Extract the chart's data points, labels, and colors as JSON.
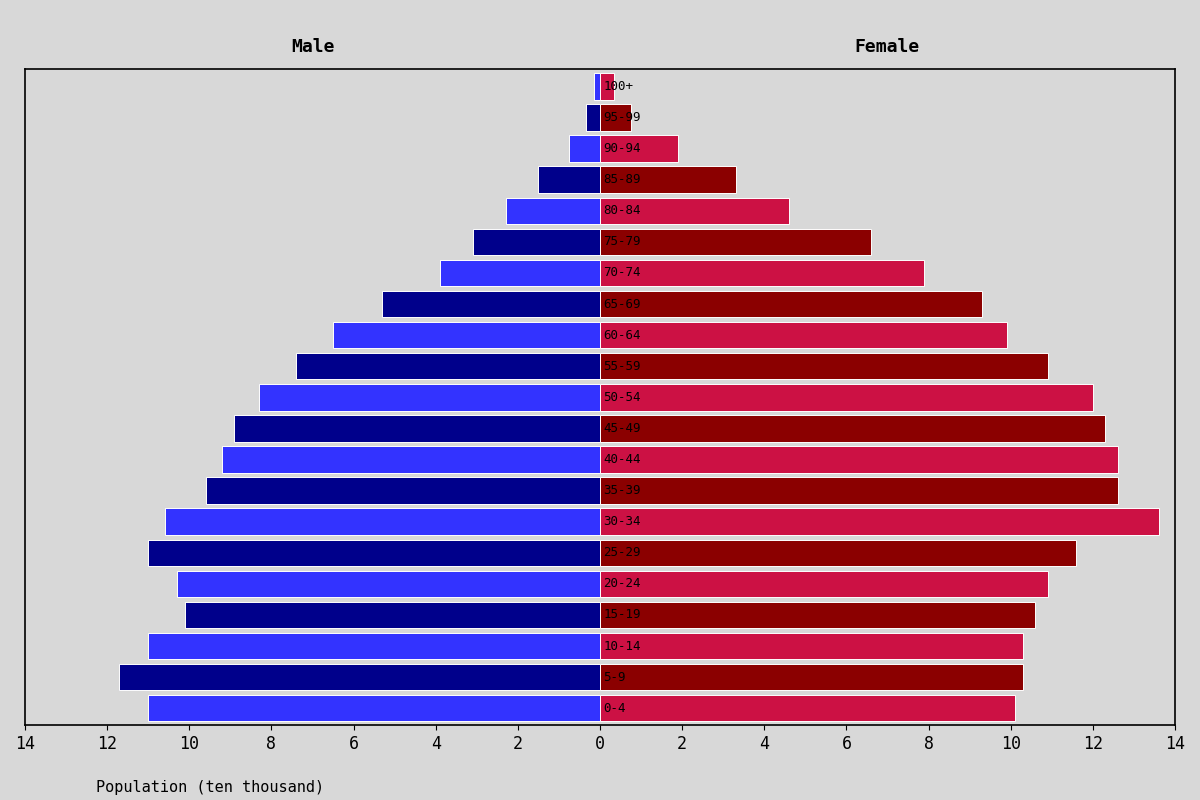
{
  "age_groups": [
    "0-4",
    "5-9",
    "10-14",
    "15-19",
    "20-24",
    "25-29",
    "30-34",
    "35-39",
    "40-44",
    "45-49",
    "50-54",
    "55-59",
    "60-64",
    "65-69",
    "70-74",
    "75-79",
    "80-84",
    "85-89",
    "90-94",
    "95-99",
    "100+"
  ],
  "male_values": [
    11.0,
    11.7,
    11.0,
    10.1,
    10.3,
    11.0,
    10.6,
    9.6,
    9.2,
    8.9,
    8.3,
    7.4,
    6.5,
    5.3,
    3.9,
    3.1,
    2.3,
    1.5,
    0.75,
    0.35,
    0.15
  ],
  "female_values": [
    10.1,
    10.3,
    10.3,
    10.6,
    10.9,
    11.6,
    13.6,
    12.6,
    12.6,
    12.3,
    12.0,
    10.9,
    9.9,
    9.3,
    7.9,
    6.6,
    4.6,
    3.3,
    1.9,
    0.75,
    0.35
  ],
  "male_dark": "#00008B",
  "male_light": "#3333FF",
  "female_dark": "#8B0000",
  "female_light": "#CC1144",
  "male_label": "Male",
  "female_label": "Female",
  "xlabel": "Population (ten thousand)",
  "xlim": 14,
  "background_color": "#d8d8d8",
  "tick_fontsize": 12,
  "title_fontsize": 13,
  "label_fontsize": 11,
  "age_fontsize": 9,
  "bar_height": 0.85
}
